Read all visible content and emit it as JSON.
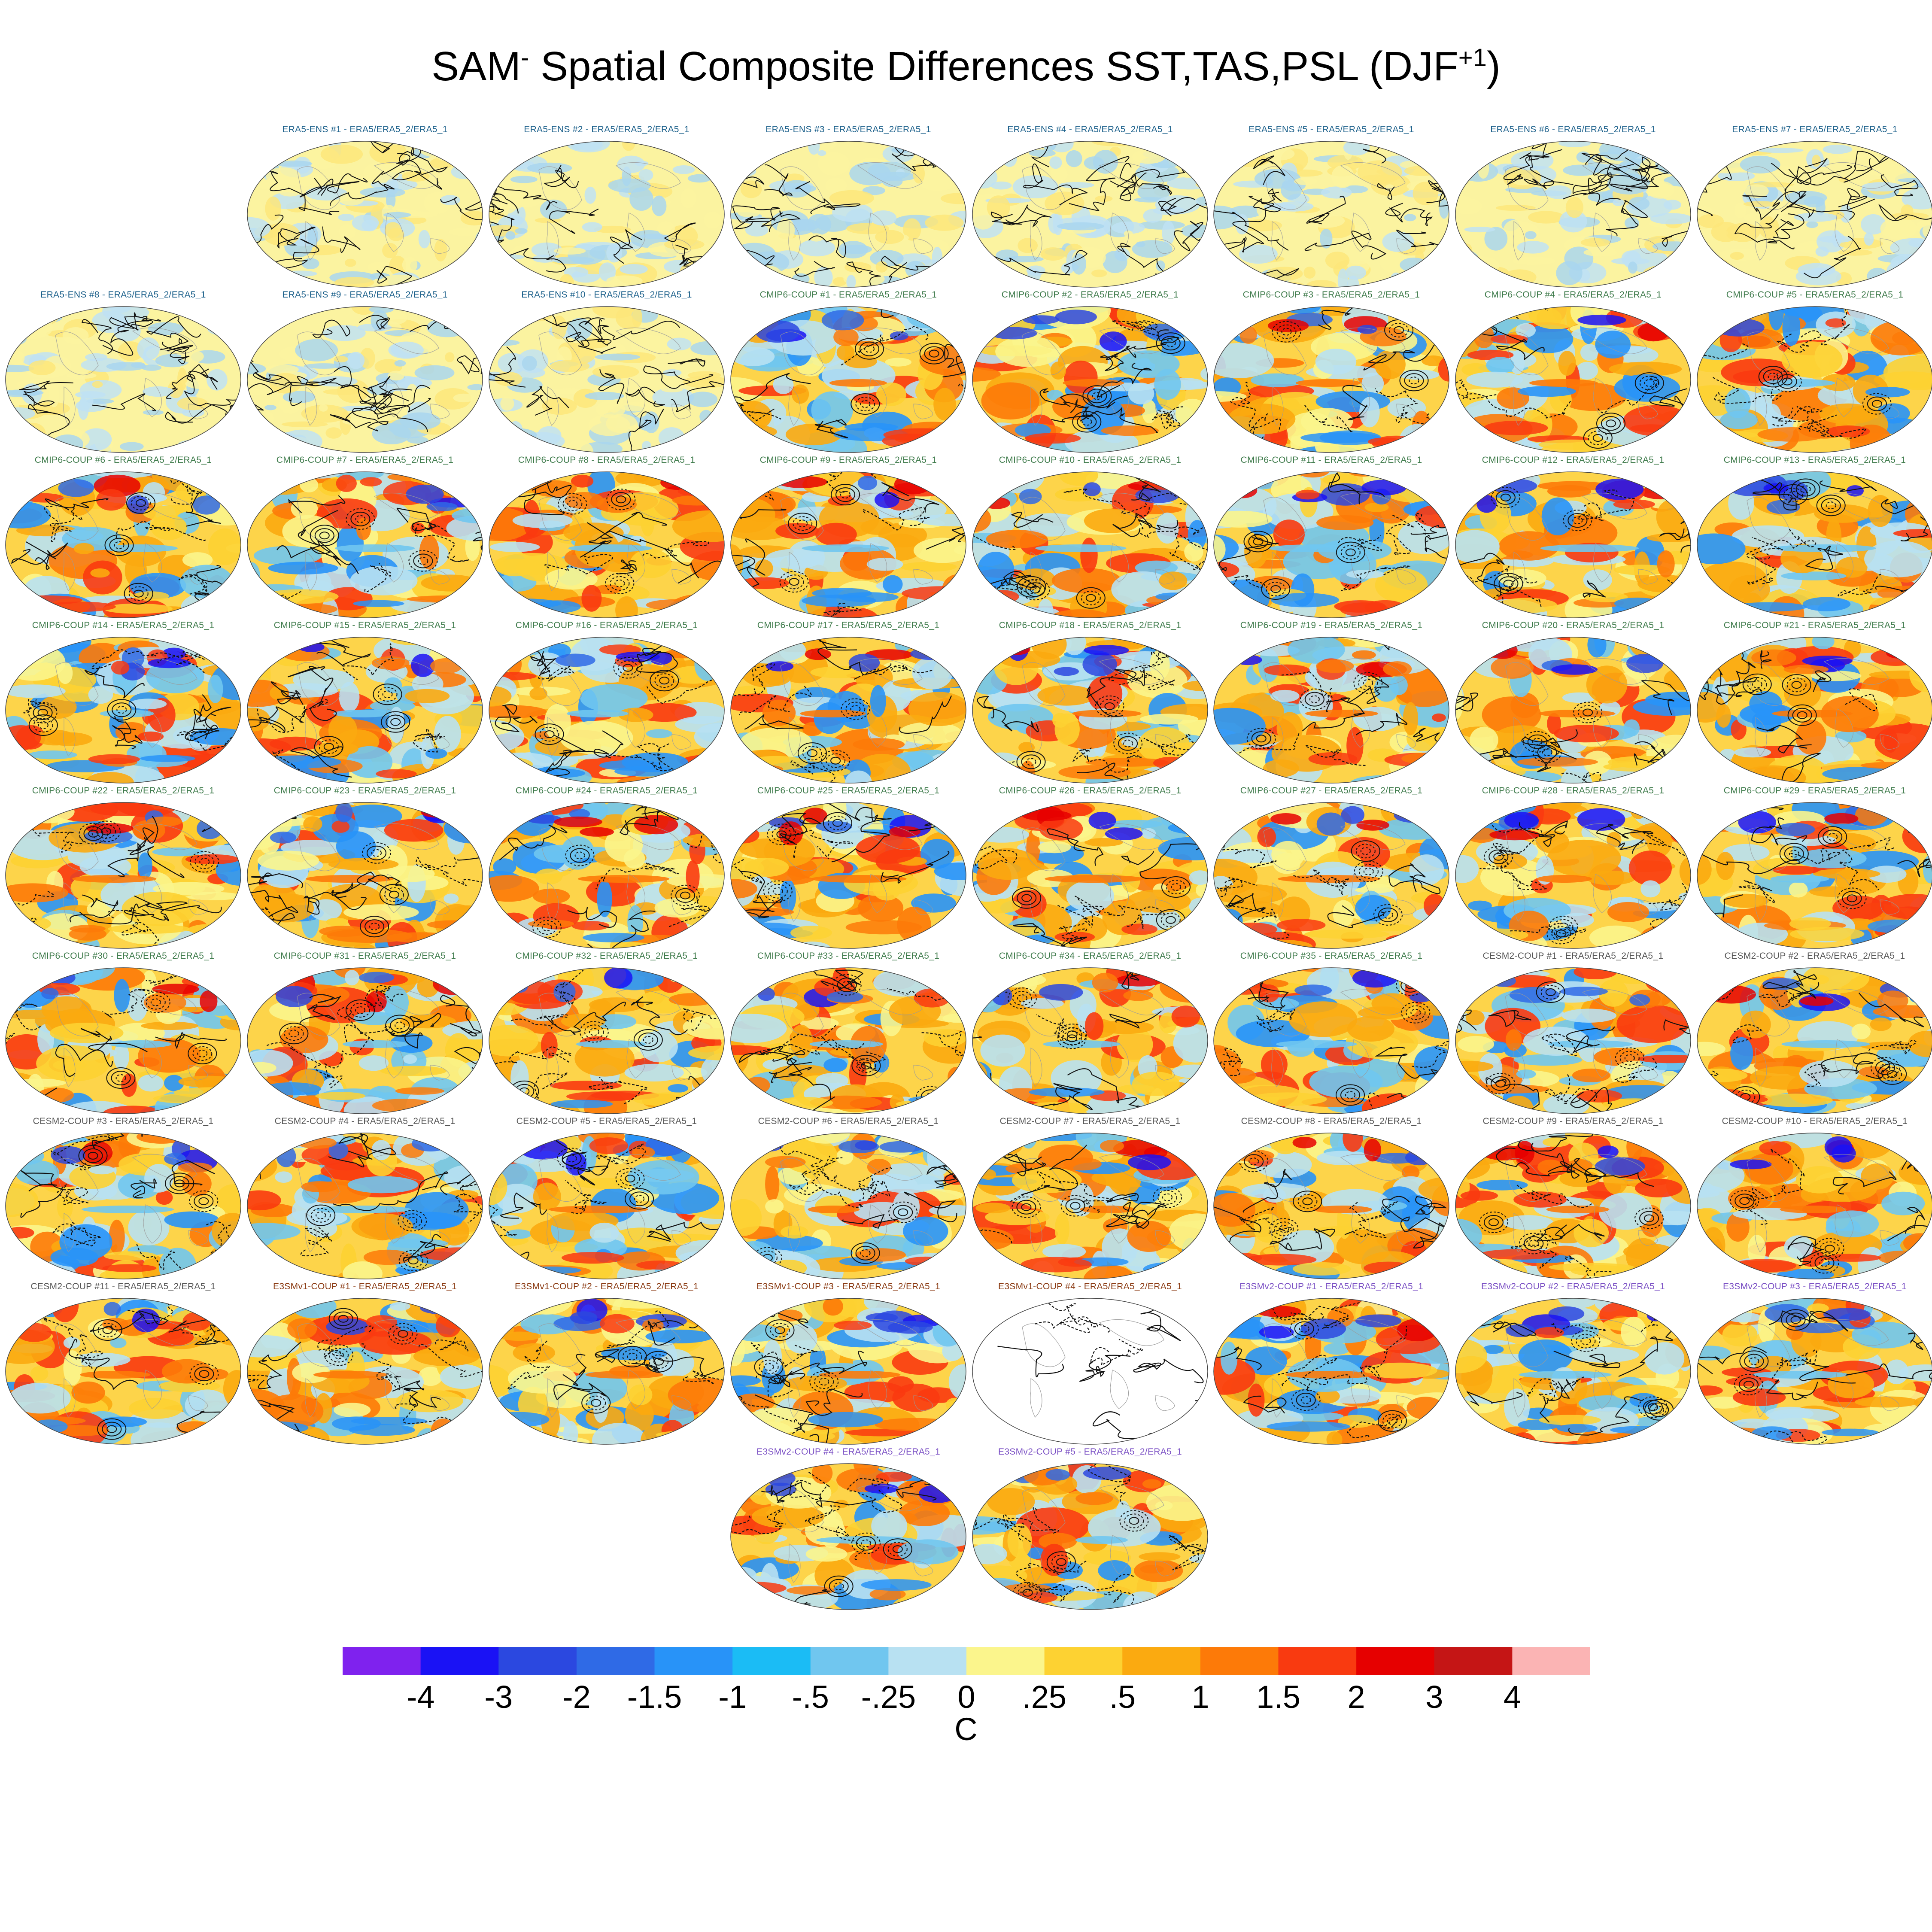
{
  "title": {
    "main": "SAM",
    "sup1": "-",
    "rest": " Spatial Composite Differences SST,TAS,PSL (DJF",
    "sup2": "+1",
    "end": ")"
  },
  "label_suffix": " - ERA5/ERA5_2/ERA5_1",
  "groups": {
    "ERA5-ENS": {
      "color": "#1a5f8a",
      "style": "era"
    },
    "CMIP6-COUP": {
      "color": "#3d7a4a",
      "style": "model"
    },
    "CESM2-COUP": {
      "color": "#555555",
      "style": "model"
    },
    "E3SMv1-COUP": {
      "color": "#8a3a12",
      "style": "model"
    },
    "E3SMv2-COUP": {
      "color": "#7a4fc4",
      "style": "model"
    }
  },
  "panels": [
    {
      "group": "ERA5-ENS",
      "num": "#1"
    },
    {
      "group": "ERA5-ENS",
      "num": "#2"
    },
    {
      "group": "ERA5-ENS",
      "num": "#3"
    },
    {
      "group": "ERA5-ENS",
      "num": "#4"
    },
    {
      "group": "ERA5-ENS",
      "num": "#5"
    },
    {
      "group": "ERA5-ENS",
      "num": "#6"
    },
    {
      "group": "ERA5-ENS",
      "num": "#7"
    },
    {
      "group": "ERA5-ENS",
      "num": "#8"
    },
    {
      "group": "ERA5-ENS",
      "num": "#9"
    },
    {
      "group": "ERA5-ENS",
      "num": "#10"
    },
    {
      "group": "CMIP6-COUP",
      "num": "#1"
    },
    {
      "group": "CMIP6-COUP",
      "num": "#2"
    },
    {
      "group": "CMIP6-COUP",
      "num": "#3"
    },
    {
      "group": "CMIP6-COUP",
      "num": "#4"
    },
    {
      "group": "CMIP6-COUP",
      "num": "#5"
    },
    {
      "group": "CMIP6-COUP",
      "num": "#6"
    },
    {
      "group": "CMIP6-COUP",
      "num": "#7"
    },
    {
      "group": "CMIP6-COUP",
      "num": "#8"
    },
    {
      "group": "CMIP6-COUP",
      "num": "#9"
    },
    {
      "group": "CMIP6-COUP",
      "num": "#10"
    },
    {
      "group": "CMIP6-COUP",
      "num": "#11"
    },
    {
      "group": "CMIP6-COUP",
      "num": "#12"
    },
    {
      "group": "CMIP6-COUP",
      "num": "#13"
    },
    {
      "group": "CMIP6-COUP",
      "num": "#14"
    },
    {
      "group": "CMIP6-COUP",
      "num": "#15"
    },
    {
      "group": "CMIP6-COUP",
      "num": "#16"
    },
    {
      "group": "CMIP6-COUP",
      "num": "#17"
    },
    {
      "group": "CMIP6-COUP",
      "num": "#18"
    },
    {
      "group": "CMIP6-COUP",
      "num": "#19"
    },
    {
      "group": "CMIP6-COUP",
      "num": "#20"
    },
    {
      "group": "CMIP6-COUP",
      "num": "#21"
    },
    {
      "group": "CMIP6-COUP",
      "num": "#22"
    },
    {
      "group": "CMIP6-COUP",
      "num": "#23"
    },
    {
      "group": "CMIP6-COUP",
      "num": "#24"
    },
    {
      "group": "CMIP6-COUP",
      "num": "#25"
    },
    {
      "group": "CMIP6-COUP",
      "num": "#26"
    },
    {
      "group": "CMIP6-COUP",
      "num": "#27"
    },
    {
      "group": "CMIP6-COUP",
      "num": "#28"
    },
    {
      "group": "CMIP6-COUP",
      "num": "#29"
    },
    {
      "group": "CMIP6-COUP",
      "num": "#30"
    },
    {
      "group": "CMIP6-COUP",
      "num": "#31"
    },
    {
      "group": "CMIP6-COUP",
      "num": "#32"
    },
    {
      "group": "CMIP6-COUP",
      "num": "#33"
    },
    {
      "group": "CMIP6-COUP",
      "num": "#34"
    },
    {
      "group": "CMIP6-COUP",
      "num": "#35"
    },
    {
      "group": "CESM2-COUP",
      "num": "#1"
    },
    {
      "group": "CESM2-COUP",
      "num": "#2"
    },
    {
      "group": "CESM2-COUP",
      "num": "#3"
    },
    {
      "group": "CESM2-COUP",
      "num": "#4"
    },
    {
      "group": "CESM2-COUP",
      "num": "#5"
    },
    {
      "group": "CESM2-COUP",
      "num": "#6"
    },
    {
      "group": "CESM2-COUP",
      "num": "#7"
    },
    {
      "group": "CESM2-COUP",
      "num": "#8"
    },
    {
      "group": "CESM2-COUP",
      "num": "#9"
    },
    {
      "group": "CESM2-COUP",
      "num": "#10"
    },
    {
      "group": "CESM2-COUP",
      "num": "#11"
    },
    {
      "group": "E3SMv1-COUP",
      "num": "#1"
    },
    {
      "group": "E3SMv1-COUP",
      "num": "#2"
    },
    {
      "group": "E3SMv1-COUP",
      "num": "#3"
    },
    {
      "group": "E3SMv1-COUP",
      "num": "#4",
      "blank": true
    },
    {
      "group": "E3SMv2-COUP",
      "num": "#1"
    },
    {
      "group": "E3SMv2-COUP",
      "num": "#2"
    },
    {
      "group": "E3SMv2-COUP",
      "num": "#3"
    },
    {
      "group": "E3SMv2-COUP",
      "num": "#4"
    },
    {
      "group": "E3SMv2-COUP",
      "num": "#5"
    }
  ],
  "colorbar": {
    "colors": [
      "#7f22ee",
      "#1a12f5",
      "#2b48e0",
      "#2f6ae6",
      "#2893f8",
      "#1bbcf5",
      "#70c6ef",
      "#b8e1f2",
      "#fbf58c",
      "#fdd232",
      "#fbaa10",
      "#fd7a08",
      "#f93a10",
      "#e60000",
      "#c51515",
      "#fbb4b4"
    ],
    "labels": [
      "-4",
      "-3",
      "-2",
      "-1.5",
      "-1",
      "-.5",
      "-.25",
      "0",
      ".25",
      ".5",
      "1",
      "1.5",
      "2",
      "3",
      "4"
    ],
    "units": "C"
  }
}
